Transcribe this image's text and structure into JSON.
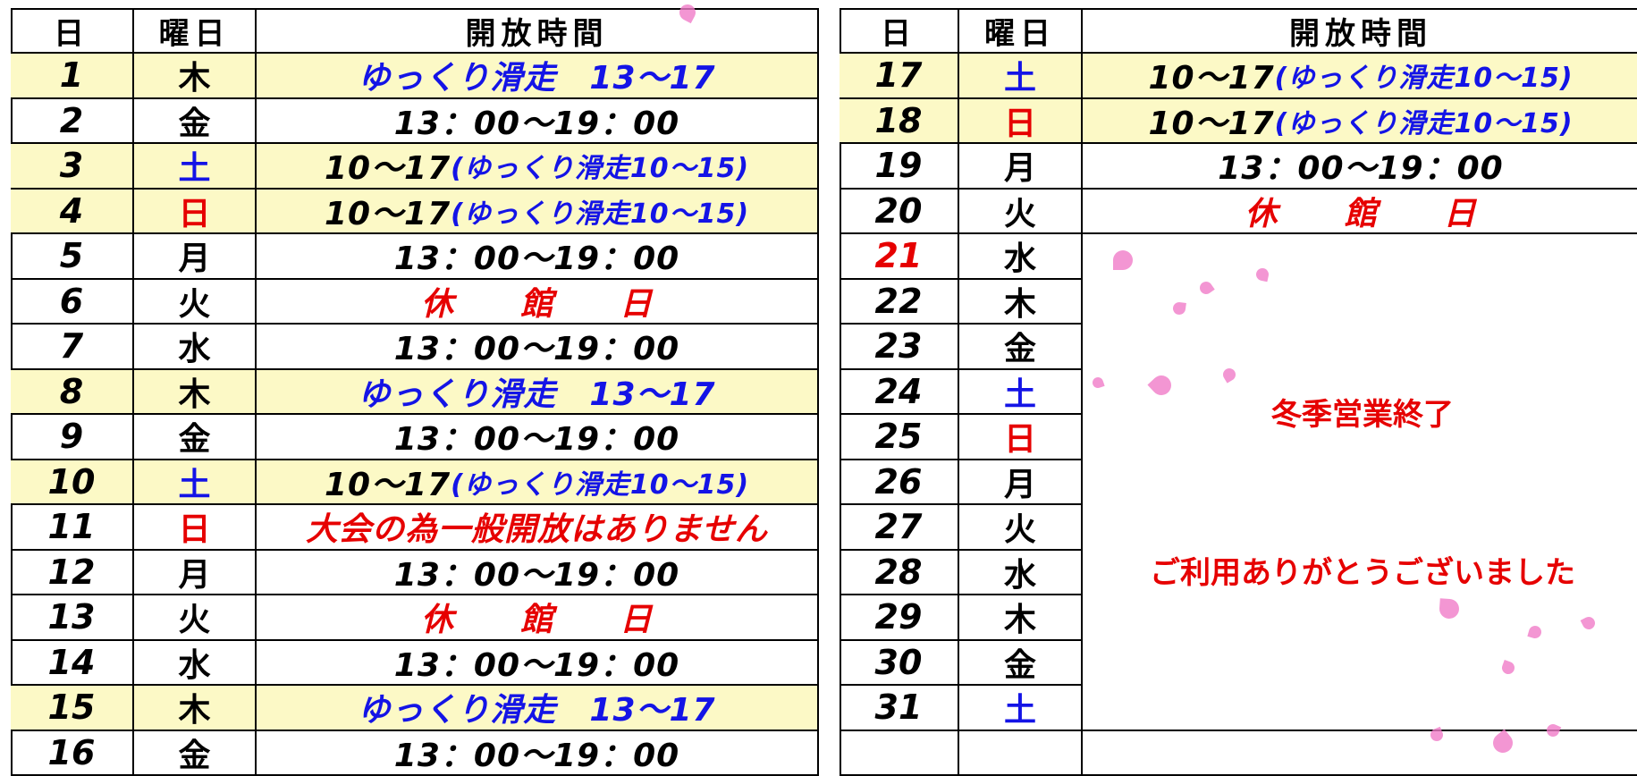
{
  "left_table": {
    "headers": [
      "日",
      "曜日",
      "開放時間"
    ],
    "rows": [
      {
        "day": "1",
        "weekday": "木",
        "hours": [
          {
            "text": "ゆっくり滑走　13～17",
            "color": "#1414e6"
          }
        ],
        "highlight": "#fcf9c6"
      },
      {
        "day": "2",
        "weekday": "金",
        "hours": [
          {
            "text": "13：00～19：00",
            "color": "#000000"
          }
        ]
      },
      {
        "day": "3",
        "weekday": "土",
        "weekday_color": "#1414e6",
        "hours": [
          {
            "text": "10～17",
            "color": "#000000"
          },
          {
            "text": "(ゆっくり滑走10～15)",
            "color": "#1414e6"
          }
        ],
        "highlight": "#fcf9c6"
      },
      {
        "day": "4",
        "weekday": "日",
        "weekday_color": "#e60000",
        "hours": [
          {
            "text": "10～17",
            "color": "#000000"
          },
          {
            "text": "(ゆっくり滑走10～15)",
            "color": "#1414e6"
          }
        ],
        "highlight": "#fcf9c6"
      },
      {
        "day": "5",
        "weekday": "月",
        "hours": [
          {
            "text": "13：00～19：00",
            "color": "#000000"
          }
        ]
      },
      {
        "day": "6",
        "weekday": "火",
        "hours": [
          {
            "text": "休　　館　　日",
            "color": "#e60000"
          }
        ]
      },
      {
        "day": "7",
        "weekday": "水",
        "hours": [
          {
            "text": "13：00～19：00",
            "color": "#000000"
          }
        ]
      },
      {
        "day": "8",
        "weekday": "木",
        "hours": [
          {
            "text": "ゆっくり滑走　13～17",
            "color": "#1414e6"
          }
        ],
        "highlight": "#fcf9c6"
      },
      {
        "day": "9",
        "weekday": "金",
        "hours": [
          {
            "text": "13：00～19：00",
            "color": "#000000"
          }
        ]
      },
      {
        "day": "10",
        "weekday": "土",
        "weekday_color": "#1414e6",
        "hours": [
          {
            "text": "10～17",
            "color": "#000000"
          },
          {
            "text": "(ゆっくり滑走10～15)",
            "color": "#1414e6"
          }
        ],
        "highlight": "#fcf9c6"
      },
      {
        "day": "11",
        "weekday": "日",
        "weekday_color": "#e60000",
        "hours": [
          {
            "text": "大会の為一般開放はありません",
            "color": "#e60000"
          }
        ]
      },
      {
        "day": "12",
        "weekday": "月",
        "hours": [
          {
            "text": "13：00～19：00",
            "color": "#000000"
          }
        ]
      },
      {
        "day": "13",
        "weekday": "火",
        "hours": [
          {
            "text": "休　　館　　日",
            "color": "#e60000"
          }
        ]
      },
      {
        "day": "14",
        "weekday": "水",
        "hours": [
          {
            "text": "13：00～19：00",
            "color": "#000000"
          }
        ]
      },
      {
        "day": "15",
        "weekday": "木",
        "hours": [
          {
            "text": "ゆっくり滑走　13～17",
            "color": "#1414e6"
          }
        ],
        "highlight": "#fcf9c6"
      },
      {
        "day": "16",
        "weekday": "金",
        "hours": [
          {
            "text": "13：00～19：00",
            "color": "#000000"
          }
        ]
      }
    ]
  },
  "right_table": {
    "headers": [
      "日",
      "曜日",
      "開放時間"
    ],
    "rows": [
      {
        "day": "17",
        "weekday": "土",
        "weekday_color": "#1414e6",
        "hours": [
          {
            "text": "10～17",
            "color": "#000000"
          },
          {
            "text": "(ゆっくり滑走10～15)",
            "color": "#1414e6"
          }
        ],
        "highlight": "#fcf9c6"
      },
      {
        "day": "18",
        "weekday": "日",
        "weekday_color": "#e60000",
        "hours": [
          {
            "text": "10～17",
            "color": "#000000"
          },
          {
            "text": "(ゆっくり滑走10～15)",
            "color": "#1414e6"
          }
        ],
        "highlight": "#fcf9c6"
      },
      {
        "day": "19",
        "weekday": "月",
        "hours": [
          {
            "text": "13：00～19：00",
            "color": "#000000"
          }
        ]
      },
      {
        "day": "20",
        "weekday": "火",
        "hours": [
          {
            "text": "休　　館　　日",
            "color": "#e60000"
          }
        ]
      },
      {
        "day": "21",
        "day_color": "#e60000",
        "weekday": "水"
      },
      {
        "day": "22",
        "weekday": "木"
      },
      {
        "day": "23",
        "weekday": "金"
      },
      {
        "day": "24",
        "weekday": "土",
        "weekday_color": "#1414e6"
      },
      {
        "day": "25",
        "weekday": "日",
        "weekday_color": "#e60000"
      },
      {
        "day": "26",
        "weekday": "月"
      },
      {
        "day": "27",
        "weekday": "火"
      },
      {
        "day": "28",
        "weekday": "水"
      },
      {
        "day": "29",
        "weekday": "木"
      },
      {
        "day": "30",
        "weekday": "金"
      },
      {
        "day": "31",
        "weekday": "土",
        "weekday_color": "#1414e6"
      }
    ],
    "notes": [
      "冬季営業終了",
      "ご利用ありがとうございました"
    ]
  }
}
